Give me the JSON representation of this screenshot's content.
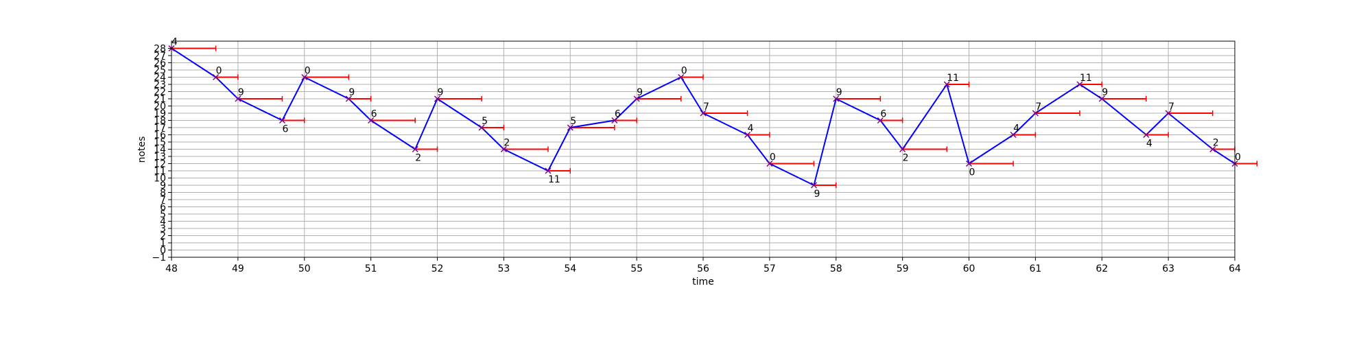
{
  "chart_data": {
    "type": "line",
    "xlabel": "time",
    "ylabel": "notes",
    "xlim": [
      48,
      64
    ],
    "ylim": [
      -1,
      29
    ],
    "x_ticks": [
      48,
      49,
      50,
      51,
      52,
      53,
      54,
      55,
      56,
      57,
      58,
      59,
      60,
      61,
      62,
      63,
      64
    ],
    "y_ticks": [
      -1,
      0,
      1,
      2,
      3,
      4,
      5,
      6,
      7,
      8,
      9,
      10,
      11,
      12,
      13,
      14,
      15,
      16,
      17,
      18,
      19,
      20,
      21,
      22,
      23,
      24,
      25,
      26,
      27,
      28
    ],
    "grid": true,
    "colors": {
      "line": "#0000ff",
      "duration": "#ff0000",
      "marker": "#800080"
    },
    "points": [
      {
        "t": 48.0,
        "y": 28,
        "dur": 0.6667,
        "label": "4",
        "pos": "above"
      },
      {
        "t": 48.6667,
        "y": 24,
        "dur": 0.3333,
        "label": "0",
        "pos": "above"
      },
      {
        "t": 49.0,
        "y": 21,
        "dur": 0.6667,
        "label": "9",
        "pos": "above"
      },
      {
        "t": 49.6667,
        "y": 18,
        "dur": 0.3333,
        "label": "6",
        "pos": "below"
      },
      {
        "t": 50.0,
        "y": 24,
        "dur": 0.6667,
        "label": "0",
        "pos": "above"
      },
      {
        "t": 50.6667,
        "y": 21,
        "dur": 0.3333,
        "label": "9",
        "pos": "above"
      },
      {
        "t": 51.0,
        "y": 18,
        "dur": 0.6667,
        "label": "6",
        "pos": "above"
      },
      {
        "t": 51.6667,
        "y": 14,
        "dur": 0.3333,
        "label": "2",
        "pos": "below"
      },
      {
        "t": 52.0,
        "y": 21,
        "dur": 0.6667,
        "label": "9",
        "pos": "above"
      },
      {
        "t": 52.6667,
        "y": 17,
        "dur": 0.3333,
        "label": "5",
        "pos": "above"
      },
      {
        "t": 53.0,
        "y": 14,
        "dur": 0.6667,
        "label": "2",
        "pos": "above"
      },
      {
        "t": 53.6667,
        "y": 11,
        "dur": 0.3333,
        "label": "11",
        "pos": "below"
      },
      {
        "t": 54.0,
        "y": 17,
        "dur": 0.6667,
        "label": "5",
        "pos": "above"
      },
      {
        "t": 54.6667,
        "y": 18,
        "dur": 0.3333,
        "label": "6",
        "pos": "above"
      },
      {
        "t": 55.0,
        "y": 21,
        "dur": 0.6667,
        "label": "9",
        "pos": "above"
      },
      {
        "t": 55.6667,
        "y": 24,
        "dur": 0.3333,
        "label": "0",
        "pos": "above"
      },
      {
        "t": 56.0,
        "y": 19,
        "dur": 0.6667,
        "label": "7",
        "pos": "above"
      },
      {
        "t": 56.6667,
        "y": 16,
        "dur": 0.3333,
        "label": "4",
        "pos": "above"
      },
      {
        "t": 57.0,
        "y": 12,
        "dur": 0.6667,
        "label": "0",
        "pos": "above"
      },
      {
        "t": 57.6667,
        "y": 9,
        "dur": 0.3333,
        "label": "9",
        "pos": "below"
      },
      {
        "t": 58.0,
        "y": 21,
        "dur": 0.6667,
        "label": "9",
        "pos": "above"
      },
      {
        "t": 58.6667,
        "y": 18,
        "dur": 0.3333,
        "label": "6",
        "pos": "above"
      },
      {
        "t": 59.0,
        "y": 14,
        "dur": 0.6667,
        "label": "2",
        "pos": "below"
      },
      {
        "t": 59.6667,
        "y": 23,
        "dur": 0.3333,
        "label": "11",
        "pos": "above"
      },
      {
        "t": 60.0,
        "y": 12,
        "dur": 0.6667,
        "label": "0",
        "pos": "below"
      },
      {
        "t": 60.6667,
        "y": 16,
        "dur": 0.3333,
        "label": "4",
        "pos": "above"
      },
      {
        "t": 61.0,
        "y": 19,
        "dur": 0.6667,
        "label": "7",
        "pos": "above"
      },
      {
        "t": 61.6667,
        "y": 23,
        "dur": 0.3333,
        "label": "11",
        "pos": "above"
      },
      {
        "t": 62.0,
        "y": 21,
        "dur": 0.6667,
        "label": "9",
        "pos": "above"
      },
      {
        "t": 62.6667,
        "y": 16,
        "dur": 0.3333,
        "label": "4",
        "pos": "below"
      },
      {
        "t": 63.0,
        "y": 19,
        "dur": 0.6667,
        "label": "7",
        "pos": "above"
      },
      {
        "t": 63.6667,
        "y": 14,
        "dur": 0.3333,
        "label": "2",
        "pos": "above"
      },
      {
        "t": 64.0,
        "y": 12,
        "dur": 0.3333,
        "label": "0",
        "pos": "above"
      }
    ]
  }
}
